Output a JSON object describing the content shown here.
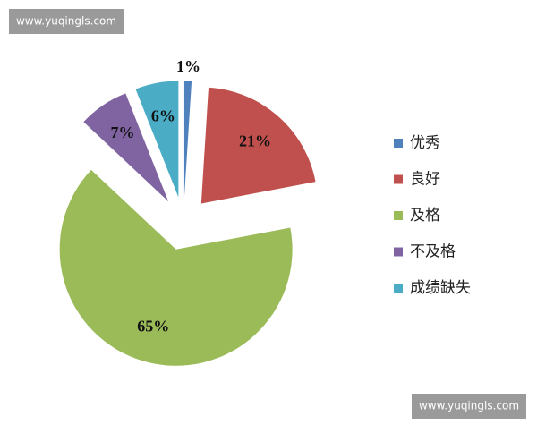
{
  "chart_data": {
    "type": "pie",
    "categories": [
      "优秀",
      "良好",
      "及格",
      "不及格",
      "成绩缺失"
    ],
    "values": [
      1,
      21,
      65,
      7,
      6
    ],
    "value_labels": [
      "1%",
      "21%",
      "65%",
      "7%",
      "6%"
    ],
    "colors": [
      "#4f81bd",
      "#c0504d",
      "#9bbb59",
      "#8064a2",
      "#4bacc6"
    ],
    "legend": "right"
  },
  "watermarks": [
    "www.yuqingls.com",
    "www.yuqingls.com"
  ]
}
